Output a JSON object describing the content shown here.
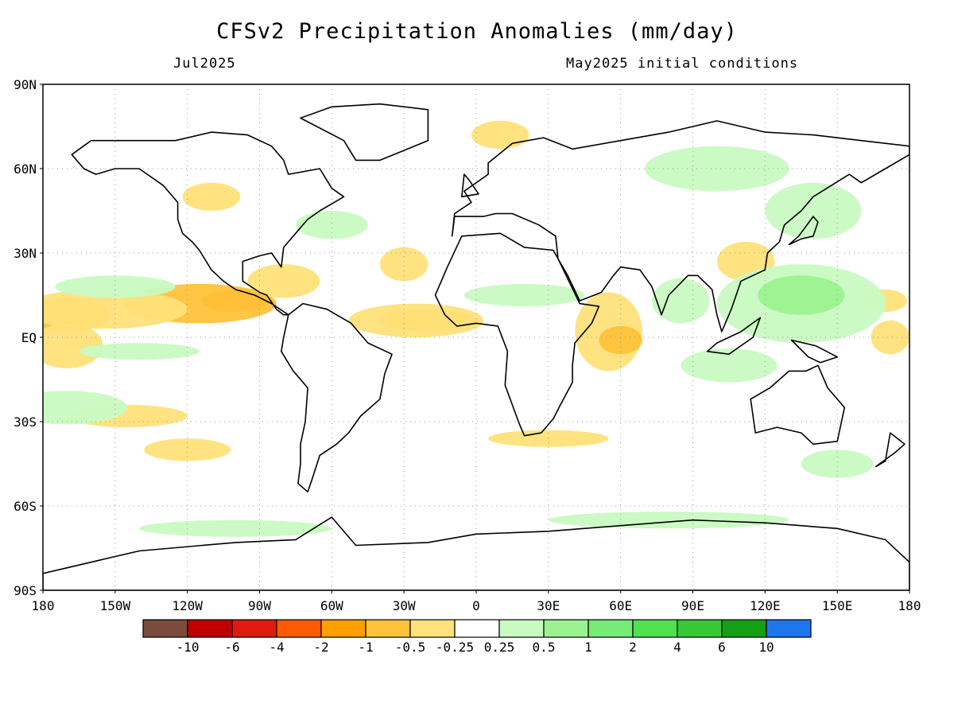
{
  "title": "CFSv2 Precipitation Anomalies (mm/day)",
  "subtitle_left": "Jul2025",
  "subtitle_right": "May2025 initial conditions",
  "map": {
    "lat_labels": [
      "90N",
      "60N",
      "30N",
      "EQ",
      "30S",
      "60S",
      "90S"
    ],
    "lon_labels": [
      "180",
      "150W",
      "120W",
      "90W",
      "60W",
      "30W",
      "0",
      "30E",
      "60E",
      "90E",
      "120E",
      "150E",
      "180"
    ]
  },
  "colorbar": {
    "colors": [
      "#7a4b3c",
      "#c00000",
      "#e01a0c",
      "#ff5a00",
      "#ff9f00",
      "#ffc23a",
      "#ffe27a",
      "#ffffff",
      "#c9fac2",
      "#9bf290",
      "#78ea78",
      "#50e050",
      "#36c836",
      "#14a014",
      "#1f75ee"
    ],
    "labels": [
      "-10",
      "-6",
      "-4",
      "-2",
      "-1",
      "-0.5",
      "-0.25",
      "0.25",
      "0.5",
      "1",
      "2",
      "4",
      "6",
      "10"
    ]
  },
  "anomaly_patches": [
    {
      "cls": -3,
      "lon": -100,
      "lat": 13,
      "rx": 14,
      "ry": 4
    },
    {
      "cls": -2,
      "lon": -115,
      "lat": 12,
      "rx": 32,
      "ry": 7
    },
    {
      "cls": -2,
      "lon": -170,
      "lat": 8,
      "rx": 18,
      "ry": 6
    },
    {
      "cls": -1,
      "lon": -155,
      "lat": 10,
      "rx": 35,
      "ry": 7
    },
    {
      "cls": -1,
      "lon": -170,
      "lat": -3,
      "rx": 15,
      "ry": 8
    },
    {
      "cls": -2,
      "lon": -20,
      "lat": 6,
      "rx": 20,
      "ry": 4
    },
    {
      "cls": -1,
      "lon": -25,
      "lat": 6,
      "rx": 28,
      "ry": 6
    },
    {
      "cls": -1,
      "lon": 55,
      "lat": 2,
      "rx": 14,
      "ry": 14
    },
    {
      "cls": -2,
      "lon": 60,
      "lat": -1,
      "rx": 9,
      "ry": 5
    },
    {
      "cls": -1,
      "lon": 112,
      "lat": 27,
      "rx": 12,
      "ry": 7
    },
    {
      "cls": -1,
      "lon": 172,
      "lat": 0,
      "rx": 8,
      "ry": 6
    },
    {
      "cls": -1,
      "lon": 170,
      "lat": 13,
      "rx": 9,
      "ry": 4
    },
    {
      "cls": -1,
      "lon": -30,
      "lat": 26,
      "rx": 10,
      "ry": 6
    },
    {
      "cls": -1,
      "lon": -110,
      "lat": 50,
      "rx": 12,
      "ry": 5
    },
    {
      "cls": -1,
      "lon": -80,
      "lat": 20,
      "rx": 15,
      "ry": 6
    },
    {
      "cls": -1,
      "lon": -145,
      "lat": -28,
      "rx": 25,
      "ry": 4
    },
    {
      "cls": -1,
      "lon": -120,
      "lat": -40,
      "rx": 18,
      "ry": 4
    },
    {
      "cls": -1,
      "lon": 30,
      "lat": -36,
      "rx": 25,
      "ry": 3
    },
    {
      "cls": -1,
      "lon": 10,
      "lat": 72,
      "rx": 12,
      "ry": 5
    },
    {
      "cls": 1,
      "lon": 135,
      "lat": 12,
      "rx": 35,
      "ry": 14
    },
    {
      "cls": 2,
      "lon": 135,
      "lat": 15,
      "rx": 18,
      "ry": 7
    },
    {
      "cls": 1,
      "lon": 85,
      "lat": 13,
      "rx": 12,
      "ry": 8
    },
    {
      "cls": 1,
      "lon": -170,
      "lat": -25,
      "rx": 25,
      "ry": 6
    },
    {
      "cls": 1,
      "lon": -150,
      "lat": 18,
      "rx": 25,
      "ry": 4
    },
    {
      "cls": 1,
      "lon": 105,
      "lat": -10,
      "rx": 20,
      "ry": 6
    },
    {
      "cls": 1,
      "lon": 140,
      "lat": 45,
      "rx": 20,
      "ry": 10
    },
    {
      "cls": 1,
      "lon": 100,
      "lat": 60,
      "rx": 30,
      "ry": 8
    },
    {
      "cls": 1,
      "lon": 20,
      "lat": 15,
      "rx": 25,
      "ry": 4
    },
    {
      "cls": 1,
      "lon": 150,
      "lat": -45,
      "rx": 15,
      "ry": 5
    },
    {
      "cls": 1,
      "lon": -100,
      "lat": -68,
      "rx": 40,
      "ry": 3
    },
    {
      "cls": 1,
      "lon": 80,
      "lat": -65,
      "rx": 50,
      "ry": 3
    },
    {
      "cls": 1,
      "lon": -140,
      "lat": -5,
      "rx": 25,
      "ry": 3
    },
    {
      "cls": 1,
      "lon": -60,
      "lat": 40,
      "rx": 15,
      "ry": 5
    }
  ],
  "land_polygons": [
    [
      [
        -168,
        65
      ],
      [
        -160,
        70
      ],
      [
        -140,
        70
      ],
      [
        -125,
        70
      ],
      [
        -110,
        73
      ],
      [
        -95,
        72
      ],
      [
        -85,
        68
      ],
      [
        -80,
        63
      ],
      [
        -78,
        58
      ],
      [
        -65,
        60
      ],
      [
        -60,
        53
      ],
      [
        -55,
        50
      ],
      [
        -65,
        45
      ],
      [
        -70,
        42
      ],
      [
        -75,
        37
      ],
      [
        -80,
        32
      ],
      [
        -81,
        25
      ],
      [
        -85,
        30
      ],
      [
        -90,
        29
      ],
      [
        -97,
        27
      ],
      [
        -97,
        20
      ],
      [
        -90,
        16
      ],
      [
        -87,
        15
      ],
      [
        -83,
        10
      ],
      [
        -80,
        8
      ],
      [
        -78,
        8
      ],
      [
        -85,
        12
      ],
      [
        -92,
        15
      ],
      [
        -100,
        17
      ],
      [
        -105,
        20
      ],
      [
        -110,
        24
      ],
      [
        -115,
        31
      ],
      [
        -118,
        34
      ],
      [
        -122,
        37
      ],
      [
        -124,
        42
      ],
      [
        -124,
        48
      ],
      [
        -130,
        54
      ],
      [
        -140,
        60
      ],
      [
        -150,
        60
      ],
      [
        -158,
        58
      ],
      [
        -163,
        60
      ],
      [
        -168,
        65
      ]
    ],
    [
      [
        -78,
        8
      ],
      [
        -72,
        12
      ],
      [
        -62,
        10
      ],
      [
        -52,
        5
      ],
      [
        -45,
        -2
      ],
      [
        -35,
        -6
      ],
      [
        -38,
        -13
      ],
      [
        -40,
        -22
      ],
      [
        -48,
        -28
      ],
      [
        -53,
        -34
      ],
      [
        -58,
        -38
      ],
      [
        -65,
        -42
      ],
      [
        -68,
        -50
      ],
      [
        -70,
        -55
      ],
      [
        -74,
        -52
      ],
      [
        -73,
        -45
      ],
      [
        -73,
        -38
      ],
      [
        -71,
        -30
      ],
      [
        -70,
        -18
      ],
      [
        -76,
        -12
      ],
      [
        -81,
        -5
      ],
      [
        -80,
        0
      ],
      [
        -78,
        8
      ]
    ],
    [
      [
        -17,
        15
      ],
      [
        -12,
        25
      ],
      [
        -6,
        36
      ],
      [
        10,
        37
      ],
      [
        20,
        32
      ],
      [
        32,
        31
      ],
      [
        34,
        28
      ],
      [
        43,
        12
      ],
      [
        51,
        11
      ],
      [
        48,
        5
      ],
      [
        41,
        -2
      ],
      [
        40,
        -10
      ],
      [
        40,
        -16
      ],
      [
        35,
        -24
      ],
      [
        32,
        -29
      ],
      [
        27,
        -34
      ],
      [
        20,
        -35
      ],
      [
        18,
        -31
      ],
      [
        12,
        -17
      ],
      [
        13,
        -5
      ],
      [
        9,
        4
      ],
      [
        0,
        5
      ],
      [
        -8,
        4
      ],
      [
        -13,
        8
      ],
      [
        -17,
        15
      ]
    ],
    [
      [
        -10,
        36
      ],
      [
        -9,
        44
      ],
      [
        -2,
        48
      ],
      [
        -5,
        52
      ],
      [
        5,
        58
      ],
      [
        5,
        62
      ],
      [
        15,
        69
      ],
      [
        28,
        71
      ],
      [
        40,
        67
      ],
      [
        60,
        70
      ],
      [
        80,
        73
      ],
      [
        100,
        77
      ],
      [
        120,
        73
      ],
      [
        140,
        72
      ],
      [
        160,
        70
      ],
      [
        180,
        68
      ],
      [
        180,
        65
      ],
      [
        170,
        60
      ],
      [
        160,
        55
      ],
      [
        155,
        58
      ],
      [
        140,
        50
      ],
      [
        135,
        45
      ],
      [
        128,
        40
      ],
      [
        126,
        34
      ],
      [
        121,
        30
      ],
      [
        120,
        24
      ],
      [
        110,
        20
      ],
      [
        106,
        10
      ],
      [
        102,
        2
      ],
      [
        100,
        8
      ],
      [
        98,
        17
      ],
      [
        92,
        22
      ],
      [
        88,
        22
      ],
      [
        80,
        15
      ],
      [
        77,
        8
      ],
      [
        73,
        18
      ],
      [
        68,
        24
      ],
      [
        60,
        25
      ],
      [
        57,
        22
      ],
      [
        52,
        16
      ],
      [
        43,
        13
      ],
      [
        38,
        22
      ],
      [
        34,
        28
      ],
      [
        33,
        36
      ],
      [
        26,
        40
      ],
      [
        15,
        44
      ],
      [
        12,
        44
      ],
      [
        8,
        44
      ],
      [
        3,
        43
      ],
      [
        -9,
        43
      ],
      [
        -10,
        36
      ]
    ],
    [
      [
        114,
        -22
      ],
      [
        122,
        -18
      ],
      [
        130,
        -12
      ],
      [
        137,
        -12
      ],
      [
        142,
        -10
      ],
      [
        146,
        -18
      ],
      [
        153,
        -25
      ],
      [
        150,
        -37
      ],
      [
        140,
        -38
      ],
      [
        135,
        -34
      ],
      [
        125,
        -32
      ],
      [
        116,
        -34
      ],
      [
        114,
        -22
      ]
    ],
    [
      [
        -180,
        -84
      ],
      [
        -140,
        -76
      ],
      [
        -100,
        -73
      ],
      [
        -75,
        -72
      ],
      [
        -60,
        -64
      ],
      [
        -50,
        -74
      ],
      [
        -20,
        -73
      ],
      [
        0,
        -70
      ],
      [
        30,
        -69
      ],
      [
        60,
        -67
      ],
      [
        90,
        -65
      ],
      [
        120,
        -66
      ],
      [
        150,
        -68
      ],
      [
        170,
        -72
      ],
      [
        180,
        -80
      ],
      [
        180,
        -90
      ],
      [
        -180,
        -90
      ]
    ],
    [
      [
        -73,
        78
      ],
      [
        -60,
        82
      ],
      [
        -40,
        83
      ],
      [
        -20,
        81
      ],
      [
        -20,
        70
      ],
      [
        -40,
        63
      ],
      [
        -50,
        63
      ],
      [
        -55,
        70
      ],
      [
        -73,
        78
      ]
    ],
    [
      [
        96,
        -5
      ],
      [
        105,
        -6
      ],
      [
        115,
        0
      ],
      [
        118,
        7
      ],
      [
        110,
        2
      ],
      [
        100,
        -2
      ],
      [
        96,
        -5
      ]
    ],
    [
      [
        130,
        33
      ],
      [
        135,
        35
      ],
      [
        140,
        36
      ],
      [
        142,
        41
      ],
      [
        140,
        43
      ],
      [
        134,
        36
      ],
      [
        130,
        33
      ]
    ],
    [
      [
        131,
        -1
      ],
      [
        141,
        -3
      ],
      [
        150,
        -7
      ],
      [
        143,
        -9
      ],
      [
        138,
        -7
      ],
      [
        131,
        -1
      ]
    ],
    [
      [
        -6,
        50
      ],
      [
        1,
        51
      ],
      [
        -3,
        56
      ],
      [
        -5,
        58
      ],
      [
        -6,
        50
      ]
    ],
    [
      [
        166,
        -46
      ],
      [
        174,
        -41
      ],
      [
        178,
        -38
      ],
      [
        172,
        -34
      ],
      [
        170,
        -44
      ],
      [
        166,
        -46
      ]
    ]
  ]
}
